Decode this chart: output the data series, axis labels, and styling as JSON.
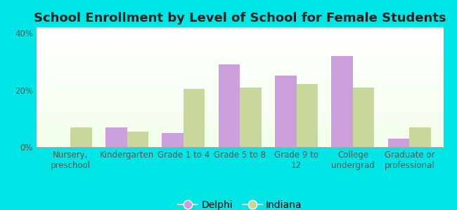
{
  "title": "School Enrollment by Level of School for Female Students",
  "categories": [
    "Nursery,\npreschool",
    "Kindergarten",
    "Grade 1 to 4",
    "Grade 5 to 8",
    "Grade 9 to\n12",
    "College\nundergrad",
    "Graduate or\nprofessional"
  ],
  "delphi": [
    0.0,
    7.0,
    5.0,
    29.0,
    25.0,
    32.0,
    3.0
  ],
  "indiana": [
    7.0,
    5.5,
    20.5,
    21.0,
    22.0,
    21.0,
    7.0
  ],
  "delphi_color": "#c9a0dc",
  "indiana_color": "#c8d89a",
  "background_color": "#00e5e5",
  "ylim": [
    0,
    42
  ],
  "yticks": [
    0,
    20,
    40
  ],
  "ytick_labels": [
    "0%",
    "20%",
    "40%"
  ],
  "bar_width": 0.38,
  "legend_labels": [
    "Delphi",
    "Indiana"
  ],
  "title_fontsize": 13,
  "tick_fontsize": 8.5,
  "legend_fontsize": 10
}
